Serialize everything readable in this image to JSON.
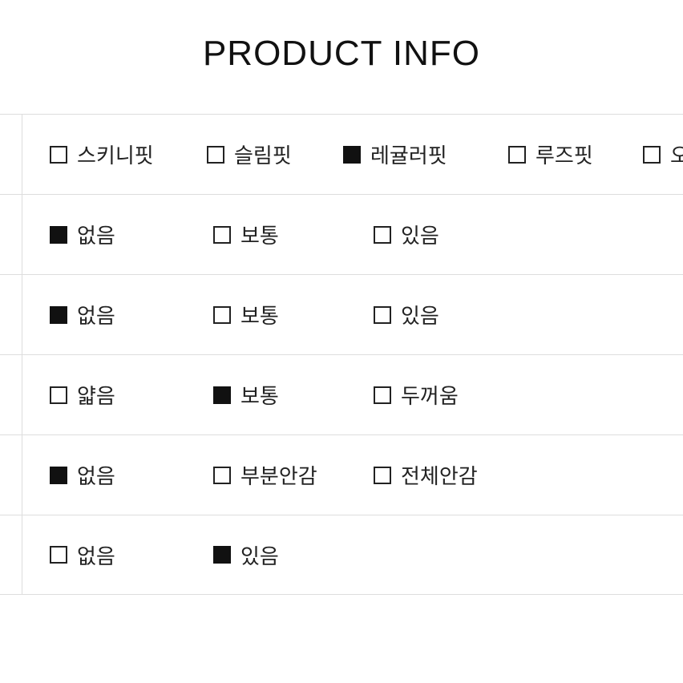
{
  "title": "PRODUCT INFO",
  "colors": {
    "text": "#111111",
    "border": "#dddddd",
    "background": "#ffffff",
    "checkbox_border": "#222222",
    "checkbox_fill": "#111111"
  },
  "rows": [
    {
      "id": "fit",
      "options": [
        {
          "label": "스키니핏",
          "checked": false
        },
        {
          "label": "슬림핏",
          "checked": false
        },
        {
          "label": "레귤러핏",
          "checked": true
        },
        {
          "label": "루즈핏",
          "checked": false
        },
        {
          "label": "오",
          "checked": false
        }
      ]
    },
    {
      "id": "row2",
      "options": [
        {
          "label": "없음",
          "checked": true
        },
        {
          "label": "보통",
          "checked": false
        },
        {
          "label": "있음",
          "checked": false
        }
      ]
    },
    {
      "id": "row3",
      "options": [
        {
          "label": "없음",
          "checked": true
        },
        {
          "label": "보통",
          "checked": false
        },
        {
          "label": "있음",
          "checked": false
        }
      ]
    },
    {
      "id": "thickness",
      "options": [
        {
          "label": "얇음",
          "checked": false
        },
        {
          "label": "보통",
          "checked": true
        },
        {
          "label": "두꺼움",
          "checked": false
        }
      ]
    },
    {
      "id": "lining",
      "options": [
        {
          "label": "없음",
          "checked": true
        },
        {
          "label": "부분안감",
          "checked": false
        },
        {
          "label": "전체안감",
          "checked": false
        }
      ]
    },
    {
      "id": "row6",
      "options": [
        {
          "label": "없음",
          "checked": false
        },
        {
          "label": "있음",
          "checked": true
        }
      ]
    }
  ]
}
